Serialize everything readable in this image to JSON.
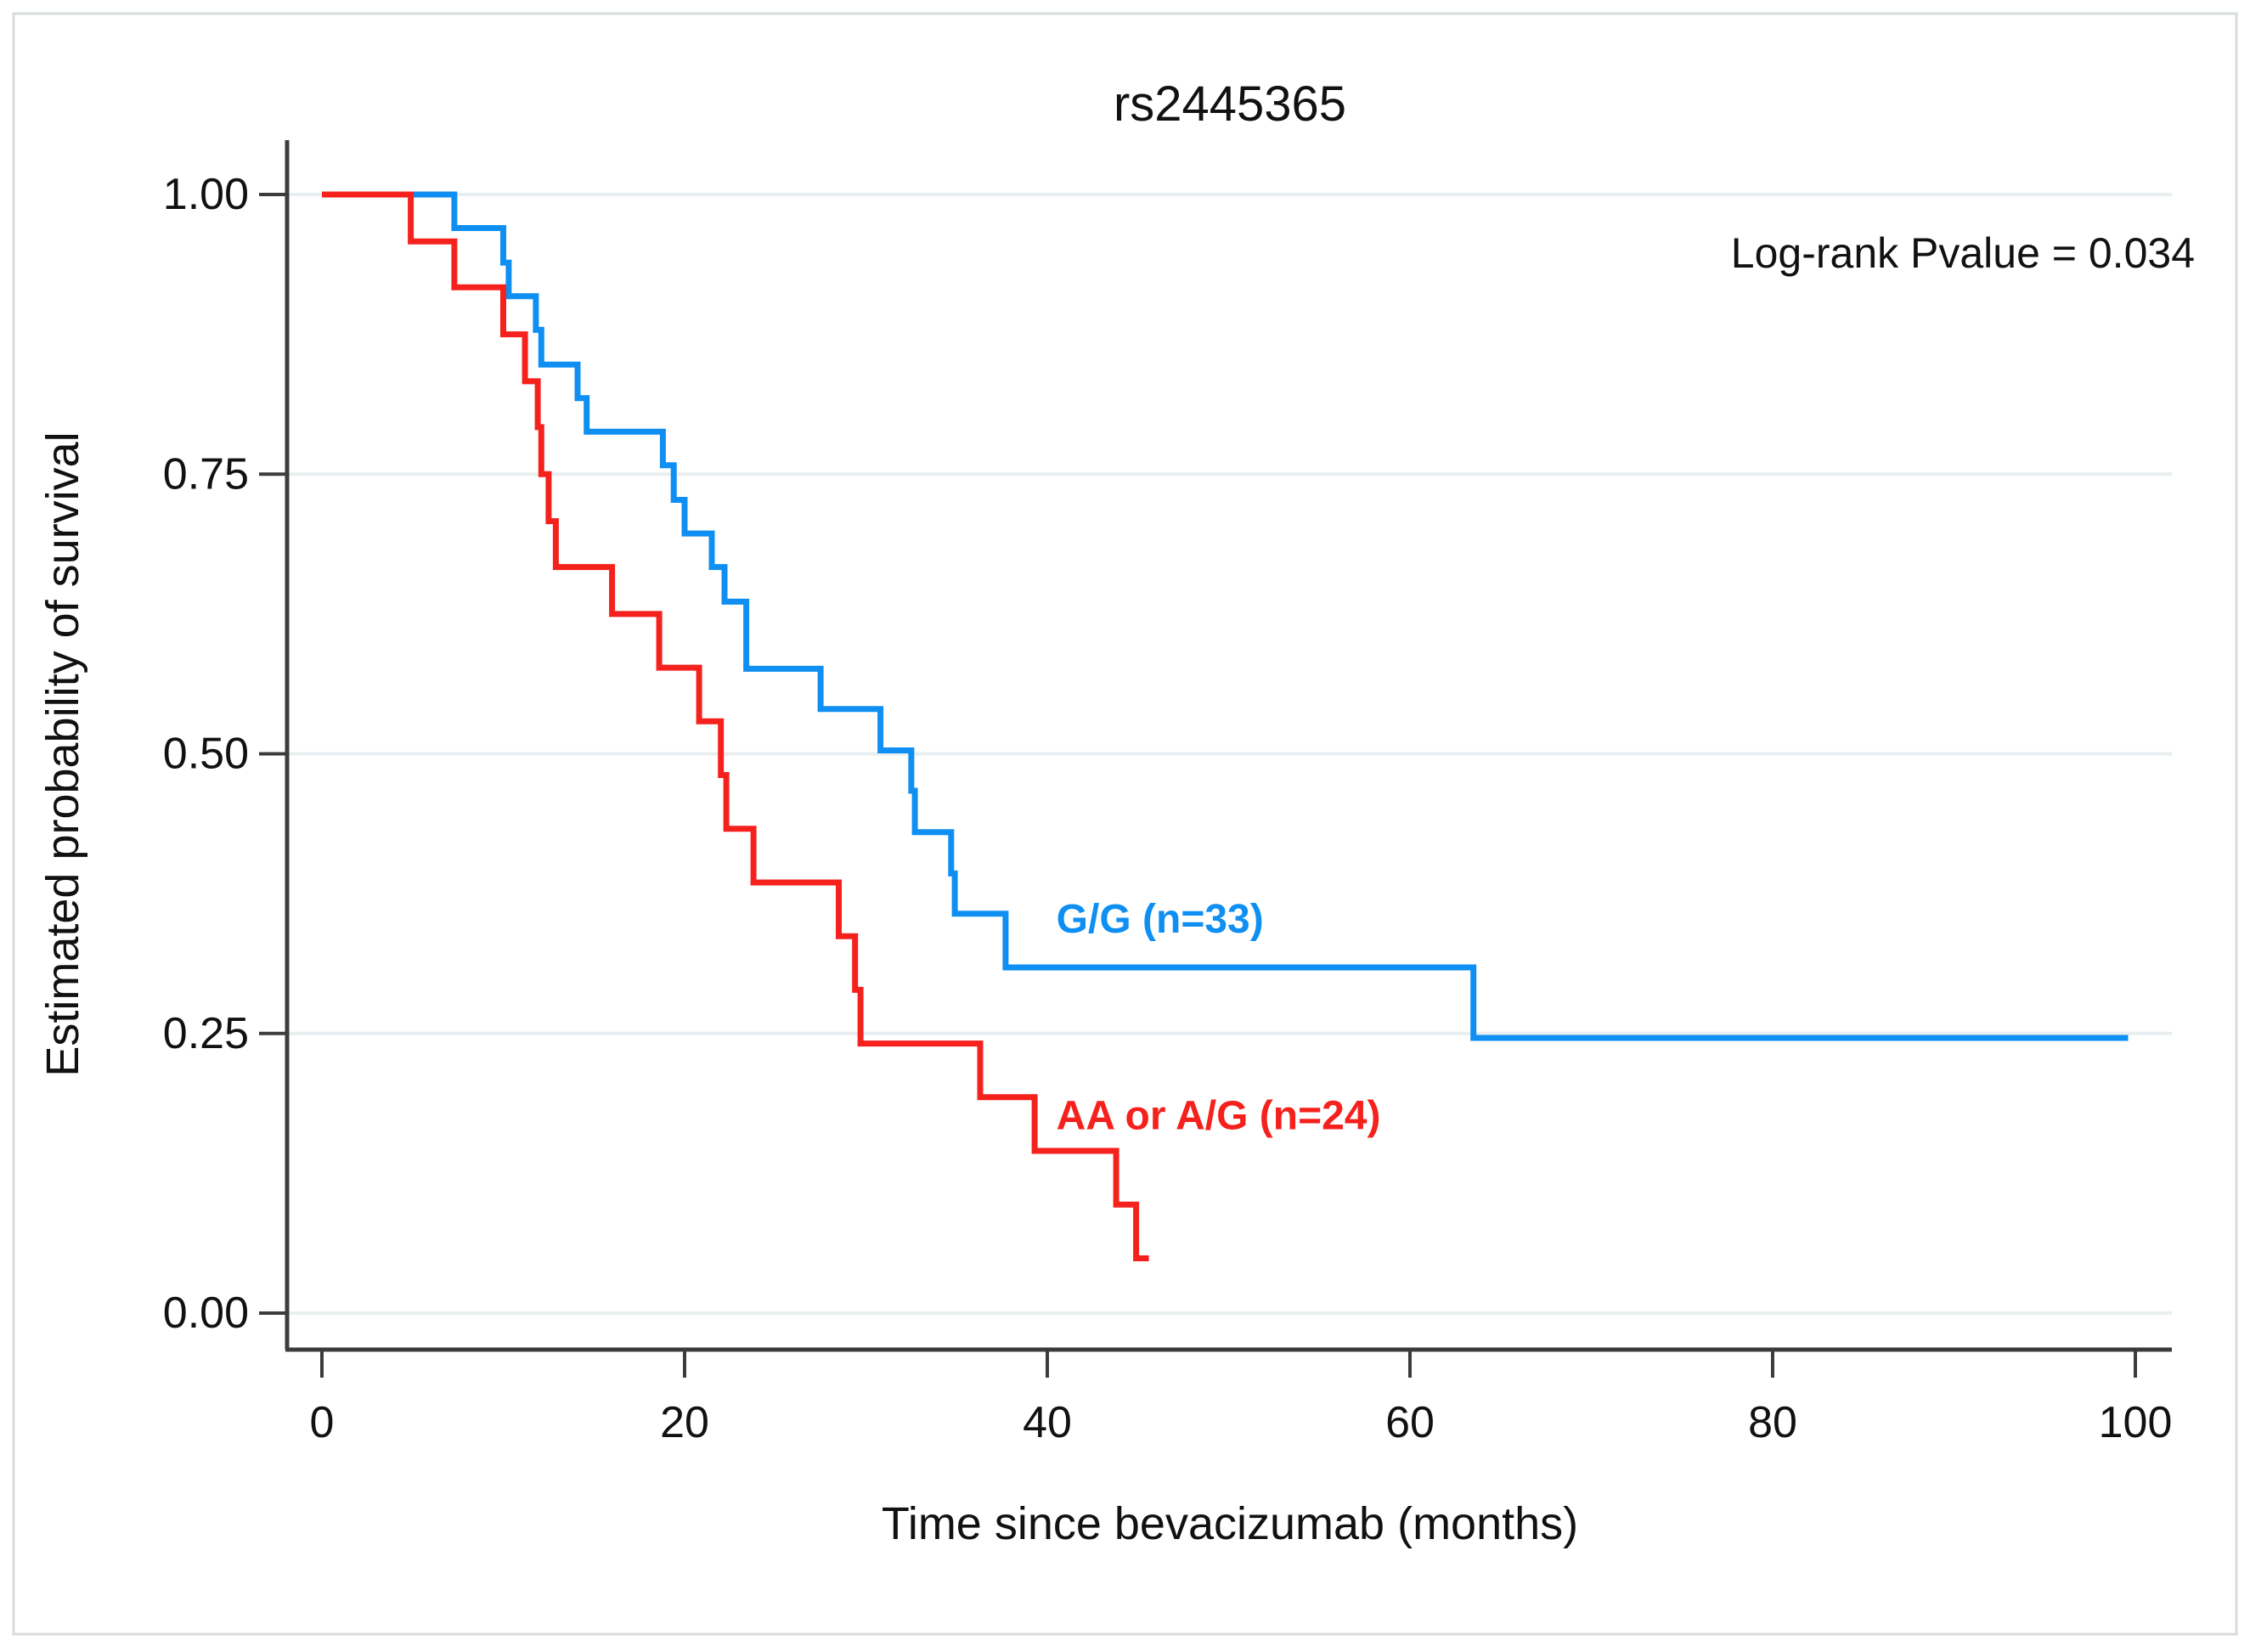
{
  "figure": {
    "title": "rs2445365",
    "annotation": "Log-rank Pvalue = 0.034",
    "colors": {
      "blue_series": "#0f8ff2",
      "red_series": "#f5211d",
      "axis": "#3c3c3c",
      "gridline": "#e9eef1",
      "outer_border": "#d8dcde",
      "text": "#111111",
      "background": "#ffffff"
    }
  },
  "chart_data": {
    "type": "line",
    "subtype": "kaplan-meier-survival-step",
    "title": "rs2445365",
    "annotation": "Log-rank Pvalue = 0.034",
    "xlabel": "Time since bevacizumab (months)",
    "ylabel": "Estimated probability of survival",
    "xlim": [
      0,
      100
    ],
    "ylim": [
      0.0,
      1.0
    ],
    "xticks": [
      0,
      20,
      40,
      60,
      80,
      100
    ],
    "ytick_values": [
      0.0,
      0.25,
      0.5,
      0.75,
      1.0
    ],
    "ytick_labels": [
      "0.00",
      "0.25",
      "0.50",
      "0.75",
      "1.00"
    ],
    "grid": "horizontal-light",
    "legend_position": "inline-labels",
    "series": [
      {
        "name": "G/G (n=33)",
        "color": "#0f8ff2",
        "label": {
          "text": "G/G (n=33)",
          "x": 40.5,
          "y": 0.352
        },
        "end_time": 99.6,
        "steps": [
          [
            0,
            1.0
          ],
          [
            7.3,
            0.97
          ],
          [
            10.0,
            0.939
          ],
          [
            10.3,
            0.909
          ],
          [
            11.8,
            0.879
          ],
          [
            12.1,
            0.848
          ],
          [
            14.1,
            0.818
          ],
          [
            14.6,
            0.788
          ],
          [
            18.8,
            0.758
          ],
          [
            19.4,
            0.727
          ],
          [
            20.0,
            0.697
          ],
          [
            21.5,
            0.667
          ],
          [
            22.2,
            0.636
          ],
          [
            23.4,
            0.576
          ],
          [
            27.5,
            0.54
          ],
          [
            30.8,
            0.503
          ],
          [
            32.5,
            0.467
          ],
          [
            32.7,
            0.43
          ],
          [
            34.7,
            0.393
          ],
          [
            34.9,
            0.357
          ],
          [
            37.7,
            0.309
          ],
          [
            63.5,
            0.246
          ]
        ]
      },
      {
        "name": "AA or A/G (n=24)",
        "color": "#f5211d",
        "label": {
          "text": "AA or A/G (n=24)",
          "x": 40.5,
          "y": 0.176
        },
        "end_time": 45.6,
        "steps": [
          [
            0,
            1.0
          ],
          [
            4.9,
            0.958
          ],
          [
            7.3,
            0.917
          ],
          [
            10.0,
            0.875
          ],
          [
            11.2,
            0.833
          ],
          [
            11.9,
            0.792
          ],
          [
            12.1,
            0.75
          ],
          [
            12.5,
            0.708
          ],
          [
            12.9,
            0.667
          ],
          [
            16.0,
            0.625
          ],
          [
            18.6,
            0.577
          ],
          [
            20.8,
            0.529
          ],
          [
            22.0,
            0.481
          ],
          [
            22.3,
            0.433
          ],
          [
            23.8,
            0.385
          ],
          [
            28.5,
            0.337
          ],
          [
            29.4,
            0.289
          ],
          [
            29.7,
            0.241
          ],
          [
            36.3,
            0.193
          ],
          [
            39.3,
            0.145
          ],
          [
            43.8,
            0.097
          ],
          [
            44.9,
            0.049
          ]
        ]
      }
    ]
  }
}
